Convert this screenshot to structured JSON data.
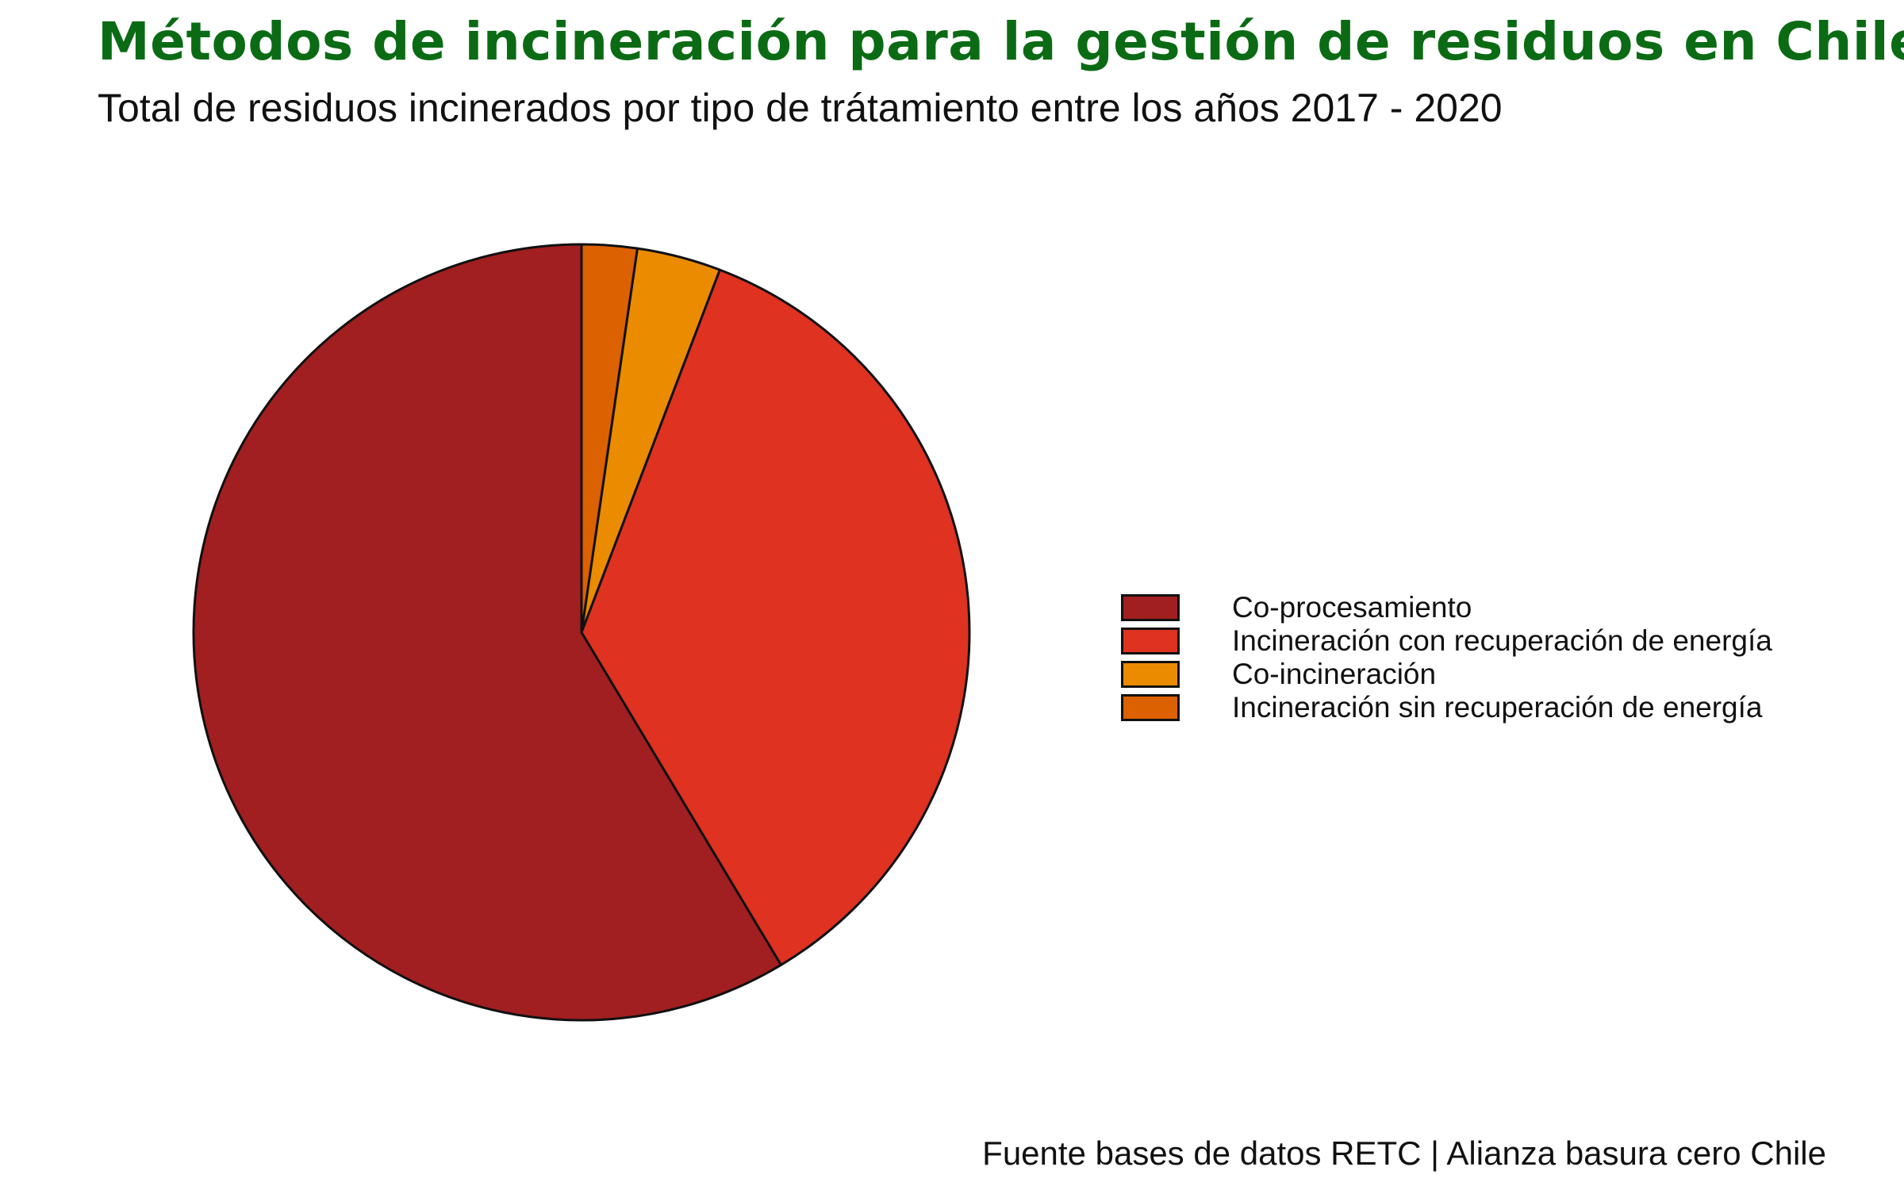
{
  "title": "Métodos de incineración para la gestión de residuos en Chile",
  "subtitle": "Total de residuos incinerados por tipo de trátamiento entre los años 2017 - 2020",
  "caption": "Fuente bases de datos RETC | Alianza basura cero Chile",
  "chart_data": {
    "type": "pie",
    "title": "Métodos de incineración para la gestión de residuos en Chile",
    "subtitle": "Total de residuos incinerados por tipo de trátamiento entre los años 2017 - 2020",
    "legend_position": "right",
    "start": "12 o'clock",
    "direction": "counterclockwise",
    "slices": [
      {
        "label": "Co-procesamiento",
        "value": 58.6,
        "color": "#a11f21"
      },
      {
        "label": "Incineración con recuperación de energía",
        "value": 35.6,
        "color": "#df3220"
      },
      {
        "label": "Co-incineración",
        "value": 3.5,
        "color": "#ea8b00"
      },
      {
        "label": "Incineración sin recuperación de energía",
        "value": 2.3,
        "color": "#dc6100"
      }
    ]
  }
}
